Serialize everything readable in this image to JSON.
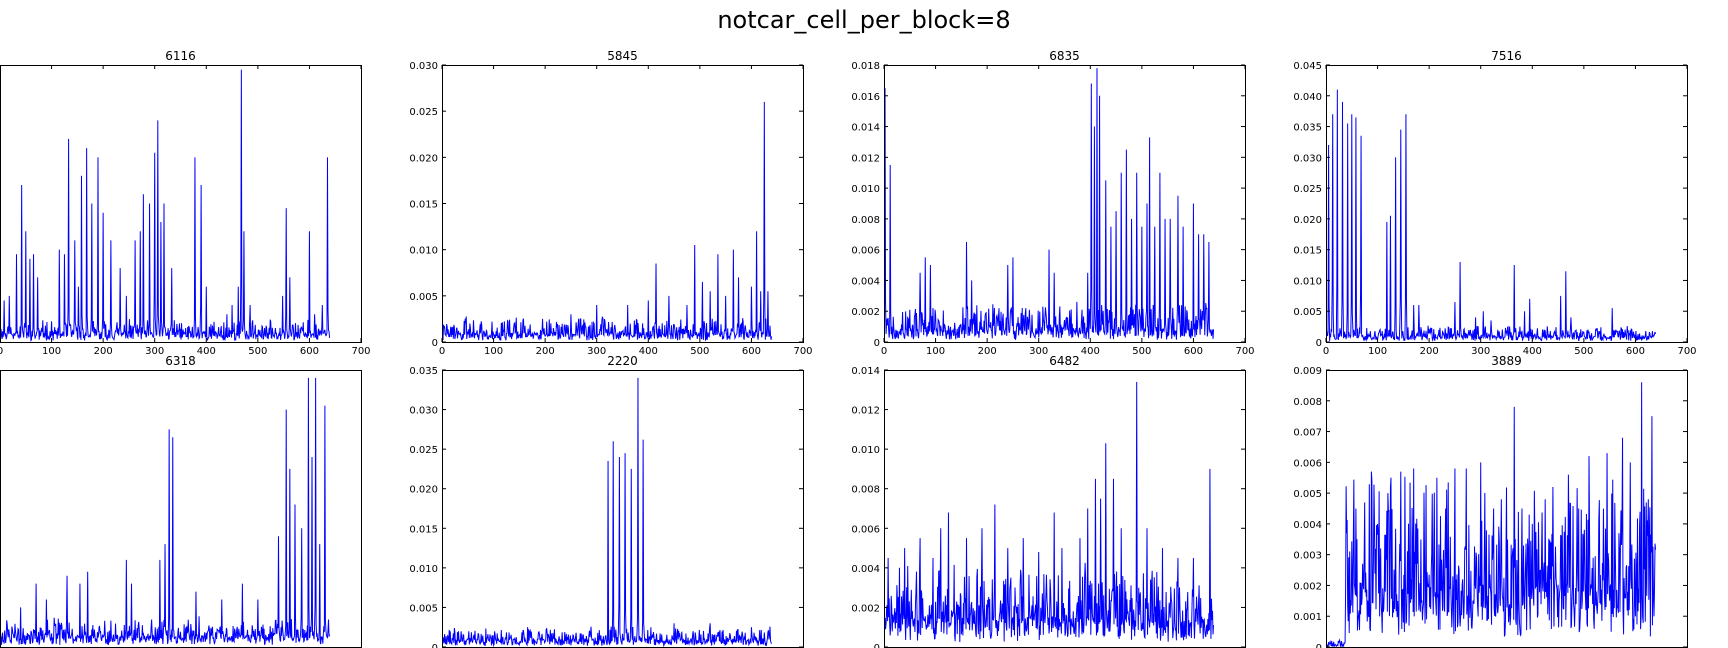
{
  "figure": {
    "suptitle": "notcar_cell_per_block=8"
  },
  "chart_data": [
    {
      "type": "line",
      "title": "6116",
      "xlim": [
        0,
        700
      ],
      "ylim": [
        0,
        0.03
      ],
      "xticks": [
        0,
        100,
        200,
        300,
        400,
        500,
        600,
        700
      ],
      "yticks": [],
      "n": 640,
      "seed": 11,
      "base": 0.0008,
      "noise": 0.001,
      "color": "#0000ff",
      "peaks": [
        [
          8,
          0.0045
        ],
        [
          18,
          0.005
        ],
        [
          32,
          0.0095
        ],
        [
          42,
          0.017
        ],
        [
          50,
          0.012
        ],
        [
          58,
          0.009
        ],
        [
          65,
          0.0095
        ],
        [
          73,
          0.007
        ],
        [
          115,
          0.01
        ],
        [
          125,
          0.0095
        ],
        [
          133,
          0.022
        ],
        [
          145,
          0.011
        ],
        [
          152,
          0.006
        ],
        [
          158,
          0.018
        ],
        [
          168,
          0.021
        ],
        [
          178,
          0.015
        ],
        [
          190,
          0.02
        ],
        [
          200,
          0.014
        ],
        [
          215,
          0.011
        ],
        [
          233,
          0.008
        ],
        [
          245,
          0.005
        ],
        [
          262,
          0.011
        ],
        [
          272,
          0.012
        ],
        [
          278,
          0.016
        ],
        [
          290,
          0.015
        ],
        [
          300,
          0.0205
        ],
        [
          306,
          0.024
        ],
        [
          312,
          0.013
        ],
        [
          318,
          0.015
        ],
        [
          333,
          0.008
        ],
        [
          378,
          0.02
        ],
        [
          390,
          0.017
        ],
        [
          400,
          0.006
        ],
        [
          440,
          0.003
        ],
        [
          450,
          0.004
        ],
        [
          462,
          0.006
        ],
        [
          468,
          0.0295
        ],
        [
          473,
          0.012
        ],
        [
          485,
          0.004
        ],
        [
          548,
          0.005
        ],
        [
          555,
          0.0145
        ],
        [
          562,
          0.007
        ],
        [
          600,
          0.012
        ],
        [
          610,
          0.003
        ],
        [
          625,
          0.004
        ],
        [
          635,
          0.02
        ]
      ]
    },
    {
      "type": "line",
      "title": "5845",
      "xlim": [
        0,
        700
      ],
      "ylim": [
        0,
        0.03
      ],
      "xticks": [
        0,
        100,
        200,
        300,
        400,
        500,
        600,
        700
      ],
      "yticks": [
        0,
        0.005,
        0.01,
        0.015,
        0.02,
        0.025,
        0.03
      ],
      "n": 640,
      "seed": 22,
      "base": 0.0008,
      "noise": 0.0012,
      "color": "#0000ff",
      "peaks": [
        [
          195,
          0.0025
        ],
        [
          250,
          0.003
        ],
        [
          300,
          0.004
        ],
        [
          360,
          0.004
        ],
        [
          400,
          0.0045
        ],
        [
          415,
          0.0085
        ],
        [
          440,
          0.005
        ],
        [
          475,
          0.004
        ],
        [
          490,
          0.0105
        ],
        [
          505,
          0.0065
        ],
        [
          520,
          0.0055
        ],
        [
          535,
          0.0095
        ],
        [
          550,
          0.005
        ],
        [
          565,
          0.01
        ],
        [
          575,
          0.007
        ],
        [
          600,
          0.006
        ],
        [
          610,
          0.012
        ],
        [
          618,
          0.0055
        ],
        [
          625,
          0.026
        ],
        [
          632,
          0.0055
        ]
      ]
    },
    {
      "type": "line",
      "title": "6835",
      "xlim": [
        0,
        700
      ],
      "ylim": [
        0,
        0.018
      ],
      "xticks": [
        0,
        100,
        200,
        300,
        400,
        500,
        600,
        700
      ],
      "yticks": [
        0,
        0.002,
        0.004,
        0.006,
        0.008,
        0.01,
        0.012,
        0.014,
        0.016,
        0.018
      ],
      "n": 640,
      "seed": 33,
      "base": 0.0007,
      "noise": 0.0012,
      "color": "#0000ff",
      "peaks": [
        [
          2,
          0.0165
        ],
        [
          12,
          0.0115
        ],
        [
          70,
          0.0045
        ],
        [
          80,
          0.0055
        ],
        [
          90,
          0.005
        ],
        [
          160,
          0.0065
        ],
        [
          170,
          0.004
        ],
        [
          240,
          0.005
        ],
        [
          250,
          0.0055
        ],
        [
          320,
          0.006
        ],
        [
          330,
          0.0045
        ],
        [
          395,
          0.0045
        ],
        [
          402,
          0.0168
        ],
        [
          408,
          0.014
        ],
        [
          413,
          0.0178
        ],
        [
          418,
          0.016
        ],
        [
          430,
          0.0105
        ],
        [
          440,
          0.0075
        ],
        [
          450,
          0.0085
        ],
        [
          460,
          0.011
        ],
        [
          470,
          0.0125
        ],
        [
          480,
          0.008
        ],
        [
          490,
          0.011
        ],
        [
          500,
          0.0075
        ],
        [
          510,
          0.009
        ],
        [
          515,
          0.0133
        ],
        [
          525,
          0.0075
        ],
        [
          535,
          0.011
        ],
        [
          545,
          0.008
        ],
        [
          555,
          0.008
        ],
        [
          570,
          0.0095
        ],
        [
          580,
          0.0075
        ],
        [
          600,
          0.009
        ],
        [
          610,
          0.007
        ],
        [
          620,
          0.007
        ],
        [
          630,
          0.0065
        ]
      ]
    },
    {
      "type": "line",
      "title": "7516",
      "xlim": [
        0,
        700
      ],
      "ylim": [
        0,
        0.045
      ],
      "xticks": [
        0,
        100,
        200,
        300,
        400,
        500,
        600,
        700
      ],
      "yticks": [
        0,
        0.005,
        0.01,
        0.015,
        0.02,
        0.025,
        0.03,
        0.035,
        0.04,
        0.045
      ],
      "n": 640,
      "seed": 44,
      "base": 0.0008,
      "noise": 0.0012,
      "color": "#0000ff",
      "peaks": [
        [
          5,
          0.032
        ],
        [
          13,
          0.037
        ],
        [
          22,
          0.041
        ],
        [
          32,
          0.039
        ],
        [
          42,
          0.0355
        ],
        [
          50,
          0.037
        ],
        [
          58,
          0.0365
        ],
        [
          68,
          0.0335
        ],
        [
          118,
          0.0195
        ],
        [
          125,
          0.0205
        ],
        [
          135,
          0.03
        ],
        [
          145,
          0.0345
        ],
        [
          155,
          0.037
        ],
        [
          170,
          0.006
        ],
        [
          180,
          0.006
        ],
        [
          250,
          0.0065
        ],
        [
          260,
          0.013
        ],
        [
          290,
          0.004
        ],
        [
          305,
          0.005
        ],
        [
          320,
          0.0035
        ],
        [
          365,
          0.0125
        ],
        [
          385,
          0.005
        ],
        [
          395,
          0.007
        ],
        [
          455,
          0.0075
        ],
        [
          465,
          0.0115
        ],
        [
          475,
          0.004
        ],
        [
          555,
          0.0055
        ]
      ]
    },
    {
      "type": "line",
      "title": "6318",
      "xlim": [
        0,
        700
      ],
      "ylim": [
        0,
        0.035
      ],
      "xticks": [],
      "yticks": [],
      "n": 640,
      "seed": 55,
      "base": 0.0012,
      "noise": 0.0016,
      "color": "#0000ff",
      "peaks": [
        [
          40,
          0.005
        ],
        [
          70,
          0.008
        ],
        [
          90,
          0.006
        ],
        [
          130,
          0.009
        ],
        [
          155,
          0.008
        ],
        [
          170,
          0.0095
        ],
        [
          245,
          0.011
        ],
        [
          255,
          0.008
        ],
        [
          310,
          0.011
        ],
        [
          320,
          0.013
        ],
        [
          328,
          0.0275
        ],
        [
          335,
          0.0265
        ],
        [
          380,
          0.007
        ],
        [
          430,
          0.006
        ],
        [
          470,
          0.008
        ],
        [
          500,
          0.006
        ],
        [
          540,
          0.014
        ],
        [
          555,
          0.03
        ],
        [
          562,
          0.0225
        ],
        [
          572,
          0.018
        ],
        [
          585,
          0.015
        ],
        [
          598,
          0.034
        ],
        [
          605,
          0.024
        ],
        [
          612,
          0.034
        ],
        [
          620,
          0.013
        ],
        [
          630,
          0.0305
        ]
      ]
    },
    {
      "type": "line",
      "title": "2220",
      "xlim": [
        0,
        700
      ],
      "ylim": [
        0,
        0.035
      ],
      "xticks": [],
      "yticks": [
        0,
        0.005,
        0.01,
        0.015,
        0.02,
        0.025,
        0.03,
        0.035
      ],
      "n": 640,
      "seed": 66,
      "base": 0.0008,
      "noise": 0.0011,
      "color": "#0000ff",
      "peaks": [
        [
          322,
          0.0235
        ],
        [
          332,
          0.026
        ],
        [
          344,
          0.024
        ],
        [
          355,
          0.0245
        ],
        [
          367,
          0.0225
        ],
        [
          380,
          0.034
        ],
        [
          390,
          0.0262
        ],
        [
          405,
          0.0025
        ],
        [
          450,
          0.003
        ],
        [
          520,
          0.003
        ],
        [
          600,
          0.0025
        ]
      ]
    },
    {
      "type": "line",
      "title": "6482",
      "xlim": [
        0,
        700
      ],
      "ylim": [
        0,
        0.014
      ],
      "xticks": [],
      "yticks": [
        0,
        0.002,
        0.004,
        0.006,
        0.008,
        0.01,
        0.012,
        0.014
      ],
      "n": 640,
      "seed": 77,
      "base": 0.0012,
      "noise": 0.0018,
      "color": "#0000ff",
      "peaks": [
        [
          8,
          0.0045
        ],
        [
          40,
          0.005
        ],
        [
          70,
          0.0055
        ],
        [
          95,
          0.0045
        ],
        [
          110,
          0.006
        ],
        [
          125,
          0.0068
        ],
        [
          160,
          0.0055
        ],
        [
          190,
          0.006
        ],
        [
          215,
          0.0072
        ],
        [
          240,
          0.005
        ],
        [
          270,
          0.0055
        ],
        [
          300,
          0.0048
        ],
        [
          330,
          0.0068
        ],
        [
          345,
          0.005
        ],
        [
          380,
          0.0055
        ],
        [
          395,
          0.007
        ],
        [
          410,
          0.0085
        ],
        [
          420,
          0.0075
        ],
        [
          430,
          0.0103
        ],
        [
          445,
          0.0085
        ],
        [
          460,
          0.006
        ],
        [
          490,
          0.0134
        ],
        [
          510,
          0.006
        ],
        [
          540,
          0.005
        ],
        [
          570,
          0.0045
        ],
        [
          600,
          0.0045
        ],
        [
          632,
          0.009
        ]
      ]
    },
    {
      "type": "line",
      "title": "3889",
      "xlim": [
        0,
        700
      ],
      "ylim": [
        0,
        0.009
      ],
      "xticks": [],
      "yticks": [
        0,
        0.001,
        0.002,
        0.003,
        0.004,
        0.005,
        0.006,
        0.007,
        0.008,
        0.009
      ],
      "n": 640,
      "seed": 88,
      "base": 0.0016,
      "noise": 0.0024,
      "color": "#0000ff",
      "flatUntil": 38,
      "peaks": [
        [
          40,
          0.0037
        ],
        [
          60,
          0.0035
        ],
        [
          75,
          0.0047
        ],
        [
          88,
          0.0057
        ],
        [
          100,
          0.004
        ],
        [
          120,
          0.005
        ],
        [
          145,
          0.0057
        ],
        [
          170,
          0.0058
        ],
        [
          190,
          0.005
        ],
        [
          215,
          0.0055
        ],
        [
          232,
          0.0045
        ],
        [
          250,
          0.0058
        ],
        [
          272,
          0.0058
        ],
        [
          300,
          0.006
        ],
        [
          325,
          0.0045
        ],
        [
          340,
          0.0048
        ],
        [
          365,
          0.0078
        ],
        [
          380,
          0.0045
        ],
        [
          400,
          0.004
        ],
        [
          425,
          0.0048
        ],
        [
          440,
          0.0052
        ],
        [
          470,
          0.0056
        ],
        [
          490,
          0.0045
        ],
        [
          510,
          0.0062
        ],
        [
          545,
          0.0063
        ],
        [
          560,
          0.0045
        ],
        [
          575,
          0.0068
        ],
        [
          590,
          0.006
        ],
        [
          612,
          0.0086
        ],
        [
          625,
          0.0048
        ],
        [
          632,
          0.0075
        ]
      ]
    }
  ]
}
